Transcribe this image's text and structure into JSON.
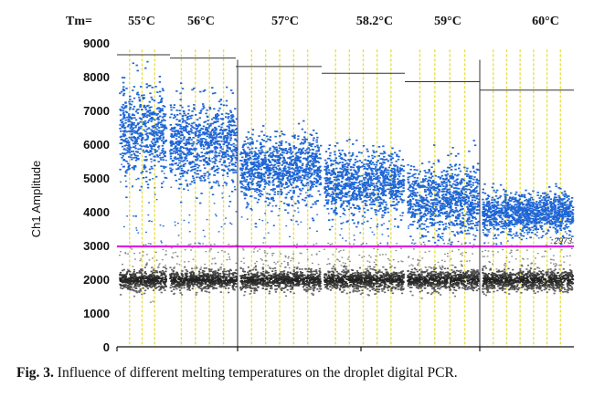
{
  "chart_data": {
    "type": "scatter",
    "title": "",
    "ylabel": "Ch1 Amplitude",
    "xlabel": "",
    "ylim": [
      0,
      9000
    ],
    "yticks": [
      0,
      1000,
      2000,
      3000,
      4000,
      5000,
      6000,
      7000,
      8000,
      9000
    ],
    "tm_header_label": "Tm=",
    "groups": [
      {
        "label": "55°C",
        "positive_mean": 6400,
        "positive_spread": 1300,
        "bracket": 8650
      },
      {
        "label": "56°C",
        "positive_mean": 6100,
        "positive_spread": 1200,
        "bracket": 8550
      },
      {
        "label": "57°C",
        "positive_mean": 5300,
        "positive_spread": 950,
        "bracket": 8300
      },
      {
        "label": "58.2°C",
        "positive_mean": 4900,
        "positive_spread": 900,
        "bracket": 8100
      },
      {
        "label": "59°C",
        "positive_mean": 4400,
        "positive_spread": 1000,
        "bracket": 7850
      },
      {
        "label": "60°C",
        "positive_mean": 4000,
        "positive_spread": 600,
        "bracket": 7600
      }
    ],
    "negative_band": {
      "mean": 2000,
      "spread": 350
    },
    "threshold": {
      "value": 2973,
      "label": "2973",
      "color": "#e020e0"
    },
    "positive_color": "#1f66d6",
    "negative_color": "#2b2b2b",
    "well_line_color": "#e8df4a"
  },
  "caption": {
    "prefix": "Fig. 3.",
    "text": " Influence of different melting temperatures on the droplet digital PCR."
  }
}
